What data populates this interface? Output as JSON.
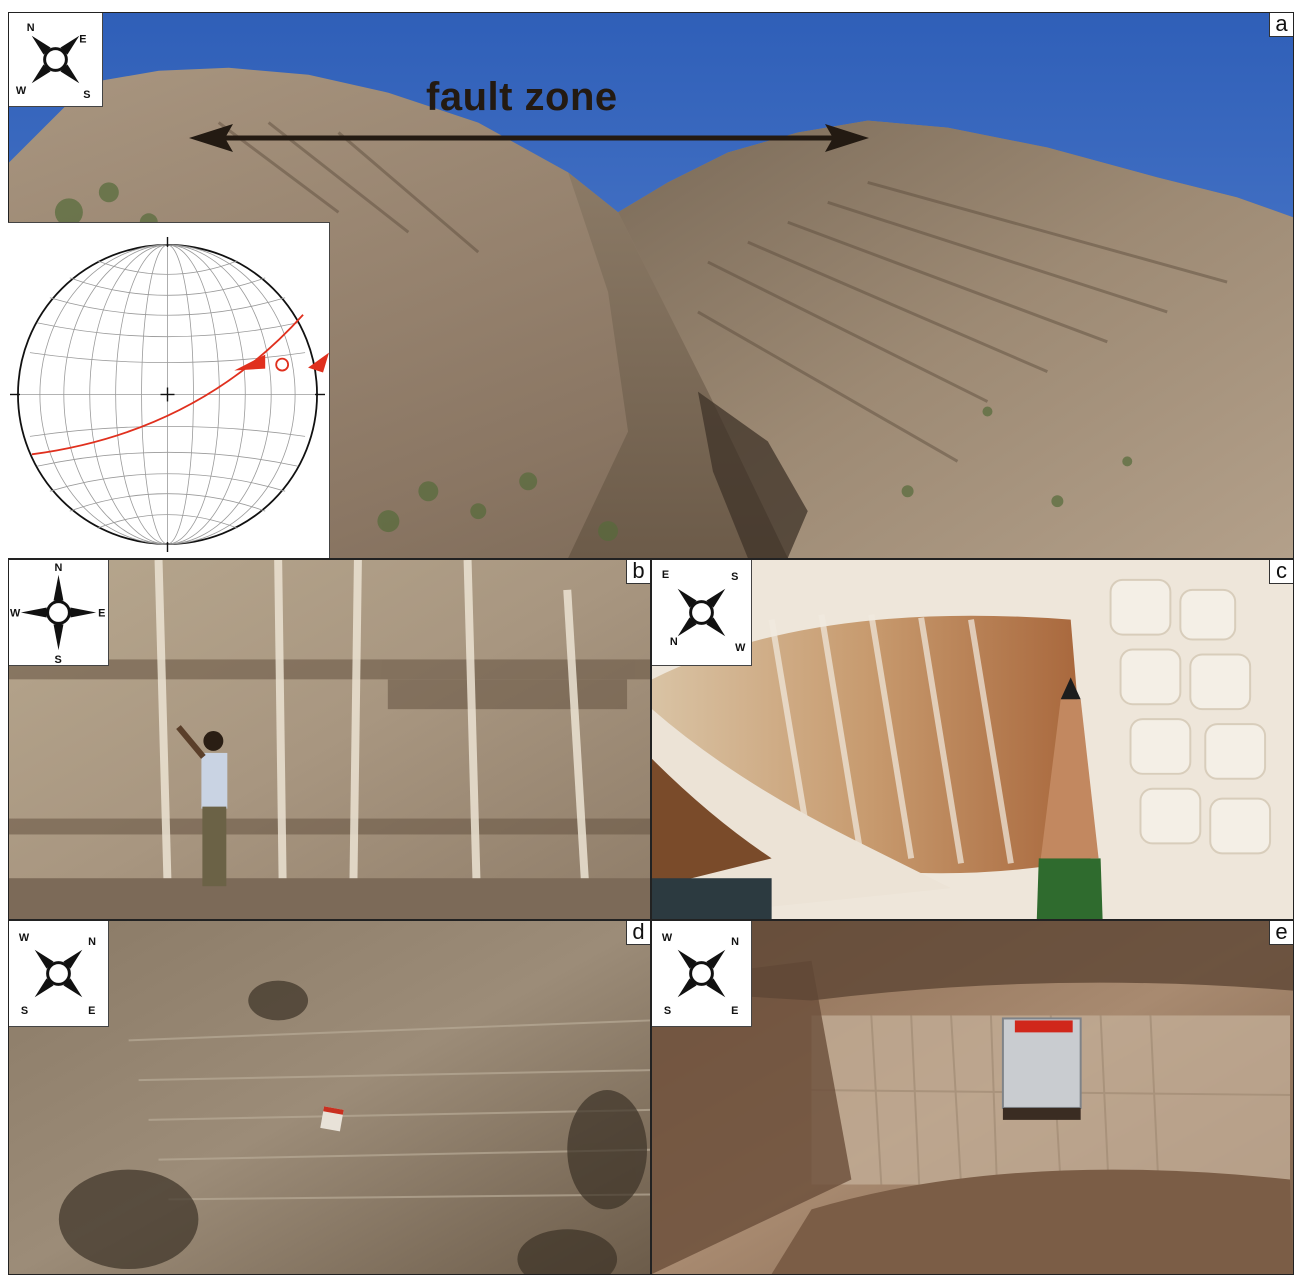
{
  "figure": {
    "main_label": "fault zone",
    "panels": [
      {
        "id": "a",
        "letter": "a",
        "compass": {
          "n": "N",
          "e": "E",
          "s": "S",
          "w": "W"
        }
      },
      {
        "id": "b",
        "letter": "b",
        "compass": {
          "n": "N",
          "e": "E",
          "s": "S",
          "w": "W"
        }
      },
      {
        "id": "c",
        "letter": "c",
        "compass": {
          "n": "N",
          "e": "E",
          "s": "S",
          "w": "W"
        }
      },
      {
        "id": "d",
        "letter": "d",
        "compass": {
          "n": "N",
          "e": "E",
          "s": "S",
          "w": "W"
        }
      },
      {
        "id": "e",
        "letter": "e",
        "compass": {
          "n": "N",
          "e": "E",
          "s": "S",
          "w": "W"
        }
      }
    ]
  },
  "colors": {
    "sky": "#3d6cc2",
    "rock_light": "#b8a68e",
    "rock_dark": "#5e4d3c",
    "quartz_white": "#efe8de",
    "annotation_dark": "#231a12",
    "stereonet_red": "#e0301e"
  },
  "icons": {
    "compass": "compass-rose-icon",
    "arrow": "double-headed-arrow-icon"
  }
}
